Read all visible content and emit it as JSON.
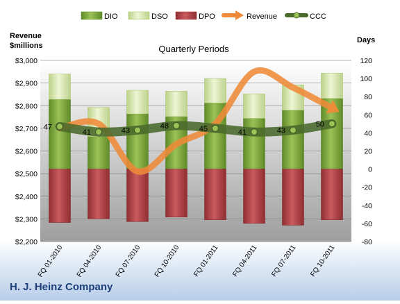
{
  "chart_data": {
    "type": "bar",
    "subtitle": "Quarterly Periods",
    "company": "H. J. Heinz Company",
    "left_axis_title": "Revenue\n$millions",
    "right_axis_title": "Days",
    "categories": [
      "FQ 01-2010",
      "FQ 04-2010",
      "FQ 07-2010",
      "FQ 10-2010",
      "FQ 01-2011",
      "FQ 04-2011",
      "FQ 07-2011",
      "FQ 10-2011"
    ],
    "left_axis": {
      "min": 2200,
      "max": 3000,
      "step": 100,
      "tick_labels": [
        "$2,200",
        "$2,300",
        "$2,400",
        "$2,500",
        "$2,600",
        "$2,700",
        "$2,800",
        "$2,900",
        "$3,000"
      ]
    },
    "right_axis": {
      "min": -80,
      "max": 120,
      "step": 20,
      "tick_labels": [
        "-80",
        "-60",
        "-40",
        "-20",
        "0",
        "20",
        "40",
        "60",
        "80",
        "100",
        "120"
      ]
    },
    "series": [
      {
        "name": "DIO",
        "kind": "stacked-bar",
        "axis": "right",
        "color": "#7aa23a",
        "values": [
          77,
          36,
          61,
          58,
          73,
          56,
          65,
          78
        ]
      },
      {
        "name": "DSO",
        "kind": "stacked-bar",
        "axis": "right",
        "color": "#d7e5a6",
        "values": [
          28,
          32,
          26,
          28,
          27,
          27,
          28,
          28
        ]
      },
      {
        "name": "DPO",
        "kind": "stacked-bar",
        "axis": "right",
        "color": "#b4464a",
        "values": [
          -59,
          -55,
          -58,
          -53,
          -56,
          -60,
          -62,
          -56
        ]
      },
      {
        "name": "Revenue",
        "kind": "line",
        "axis": "left",
        "color": "#ef8a38",
        "values": [
          2700,
          2720,
          2510,
          2630,
          2720,
          2950,
          2880,
          2790
        ]
      },
      {
        "name": "CCC",
        "kind": "line",
        "axis": "right",
        "color": "#4a6a2c",
        "values": [
          47,
          41,
          43,
          48,
          45,
          41,
          43,
          50
        ],
        "labels": [
          "47",
          "41",
          "43",
          "48",
          "45",
          "41",
          "43",
          "50"
        ]
      }
    ],
    "grid": true,
    "legend_position": "top"
  }
}
